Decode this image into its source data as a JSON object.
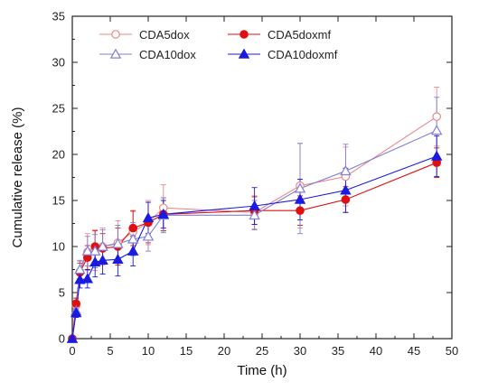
{
  "chart_data": {
    "type": "line",
    "title": "",
    "xlabel": "Time (h)",
    "ylabel": "Cumulative release (%)",
    "xlim": [
      0,
      50
    ],
    "ylim": [
      0,
      35
    ],
    "xticks": [
      0,
      5,
      10,
      15,
      20,
      25,
      30,
      35,
      40,
      45,
      50
    ],
    "yticks": [
      0,
      5,
      10,
      15,
      20,
      25,
      30,
      35
    ],
    "grid": false,
    "legend_position": "top-left",
    "series": [
      {
        "name": "CDA5dox",
        "color": "#e88a8a",
        "marker": "circle-open",
        "x": [
          0,
          0.5,
          1,
          2,
          3,
          4,
          6,
          8,
          10,
          12,
          24,
          30,
          36,
          48
        ],
        "y": [
          0,
          3.6,
          7.2,
          9.4,
          9.6,
          10,
          10.4,
          11.6,
          12.6,
          14.2,
          13.7,
          16.6,
          17.6,
          24.1
        ],
        "err": [
          0,
          0.8,
          1.2,
          2.0,
          2.2,
          2.0,
          2.4,
          2.2,
          2.4,
          2.5,
          1.8,
          4.6,
          3.2,
          3.2
        ]
      },
      {
        "name": "CDA5doxmf",
        "color": "#dd1111",
        "marker": "circle-filled",
        "x": [
          0,
          0.5,
          1,
          2,
          3,
          4,
          6,
          8,
          10,
          12,
          24,
          30,
          36,
          48
        ],
        "y": [
          0,
          3.8,
          7.2,
          8.8,
          10,
          9.8,
          10,
          12,
          12.6,
          13.5,
          13.9,
          13.9,
          15.1,
          19.1
        ],
        "err": [
          0,
          0.6,
          1.0,
          1.3,
          1.7,
          1.6,
          2.0,
          1.9,
          2.2,
          1.8,
          1.5,
          1.6,
          1.4,
          1.6
        ]
      },
      {
        "name": "CDA10dox",
        "color": "#7f7fd8",
        "marker": "triangle-open",
        "x": [
          0,
          0.5,
          1,
          2,
          3,
          4,
          6,
          8,
          10,
          12,
          24,
          30,
          36,
          48
        ],
        "y": [
          0,
          3.0,
          7.5,
          9.5,
          9.5,
          10,
          10.3,
          10.8,
          11.1,
          13.4,
          13.4,
          16.3,
          18.2,
          22.6
        ],
        "err": [
          0,
          0.6,
          1.0,
          1.6,
          1.8,
          1.8,
          2.0,
          1.8,
          1.6,
          1.9,
          1.6,
          4.9,
          2.9,
          3.6
        ]
      },
      {
        "name": "CDA10doxmf",
        "color": "#1a1ae0",
        "marker": "triangle-filled",
        "x": [
          0,
          0.5,
          1,
          2,
          3,
          4,
          6,
          8,
          10,
          12,
          24,
          30,
          36,
          48
        ],
        "y": [
          0,
          2.8,
          6.4,
          6.5,
          8.3,
          8.5,
          8.6,
          9.5,
          13.1,
          13.5,
          14.4,
          15.1,
          16.1,
          19.8
        ],
        "err": [
          0,
          0.5,
          0.9,
          1.0,
          1.6,
          1.5,
          1.8,
          1.6,
          1.7,
          1.5,
          2.0,
          2.2,
          2.4,
          2.2
        ]
      }
    ]
  }
}
